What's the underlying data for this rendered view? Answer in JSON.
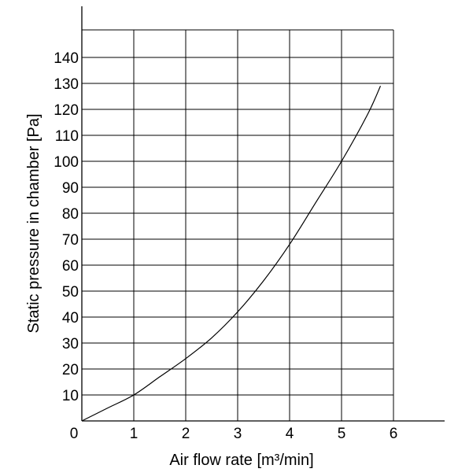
{
  "chart_data": {
    "type": "line",
    "title": "",
    "xlabel": "Air flow rate [m³/min]",
    "ylabel": "Static pressure in chamber [Pa]",
    "xlim": [
      0,
      6
    ],
    "ylim": [
      0,
      150
    ],
    "x_ticks": [
      "0",
      "1",
      "2",
      "3",
      "4",
      "5",
      "6"
    ],
    "y_ticks": [
      "10",
      "20",
      "30",
      "40",
      "50",
      "60",
      "70",
      "80",
      "90",
      "100",
      "110",
      "120",
      "130",
      "140"
    ],
    "grid": true,
    "series": [
      {
        "x": [
          0,
          0.5,
          1,
          1.5,
          2,
          2.5,
          3,
          3.5,
          4,
          4.5,
          5,
          5.5,
          5.75
        ],
        "y": [
          0,
          5,
          10,
          17,
          24,
          32,
          42,
          54,
          68,
          84,
          100,
          118,
          129
        ]
      }
    ]
  }
}
